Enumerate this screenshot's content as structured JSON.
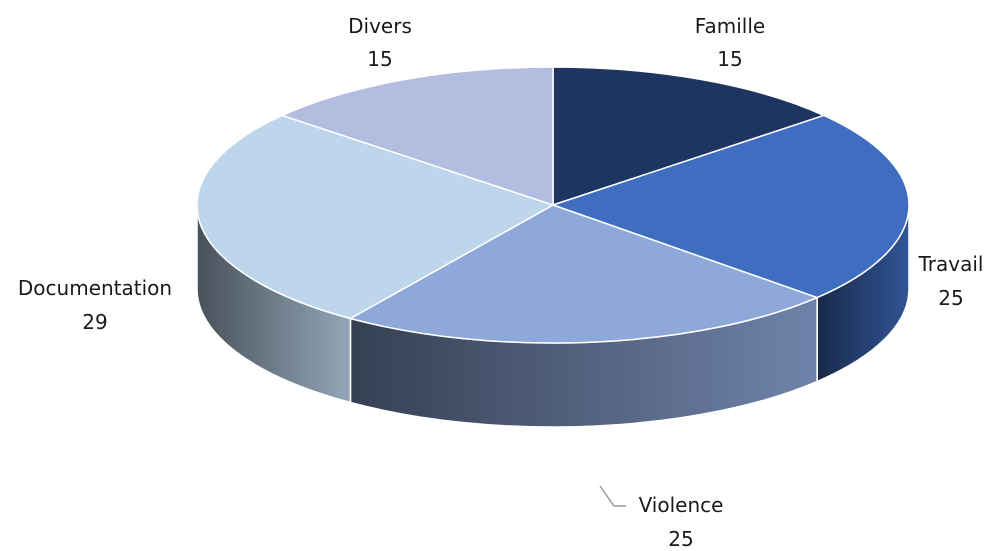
{
  "chart_data": {
    "type": "pie",
    "style": "3d",
    "title": "",
    "categories": [
      "Famille",
      "Travail",
      "Violence",
      "Documentation",
      "Divers"
    ],
    "values": [
      15,
      25,
      25,
      29,
      15
    ],
    "colors": [
      "#1f3561",
      "#3f6dc0",
      "#8ea8da",
      "#bdd6ec",
      "#b3bde0"
    ],
    "legend": "none"
  }
}
